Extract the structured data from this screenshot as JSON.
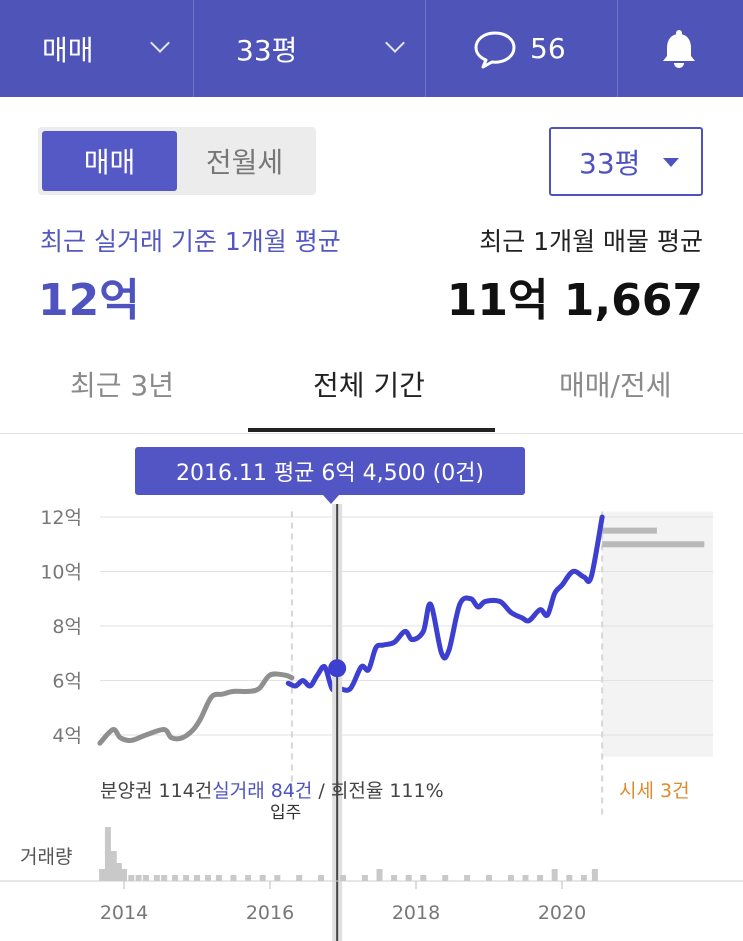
{
  "topbar": {
    "trade_type": "매매",
    "size": "33평",
    "comment_count": "56",
    "icons": {
      "comment": "speech-bubble-icon",
      "notification": "bell-icon",
      "dropdown": "chevron-down-icon"
    }
  },
  "toggle": {
    "active": "매매",
    "inactive": "전월세"
  },
  "size_select": {
    "value": "33평"
  },
  "stats": {
    "left_label": "최근 실거래 기준 1개월 평균",
    "left_value": "12억",
    "right_label": "최근 1개월 매물 평균",
    "right_value": "11억 1,667"
  },
  "tabs": [
    {
      "label": "최근 3년",
      "active": false
    },
    {
      "label": "전체 기간",
      "active": true
    },
    {
      "label": "매매/전세",
      "active": false
    }
  ],
  "tooltip": {
    "text": "2016.11 평균 6억 4,500 (0건)"
  },
  "footer": {
    "presale": "분양권 114건",
    "deals": "실거래 84건",
    "turnover": " / 회전율 111%",
    "market": "시세 3건",
    "movein": "입주",
    "volume_label": "거래량"
  },
  "colors": {
    "header": "#4f55b8",
    "accent": "#4e53c0",
    "line_before": "#8f8f8f",
    "line_after": "#3c3fd0",
    "market": "#e08a2c"
  },
  "chart_data": {
    "type": "line",
    "ylabel": "",
    "y_ticks": [
      "4억",
      "6억",
      "8억",
      "10억",
      "12억"
    ],
    "y_tick_values": [
      4,
      6,
      8,
      10,
      12
    ],
    "ylim": [
      3.2,
      12.2
    ],
    "x_ticks": [
      "2014",
      "2016",
      "2018",
      "2020"
    ],
    "x_tick_values": [
      2014,
      2016,
      2018,
      2020
    ],
    "xlim": [
      2013.6,
      2022.1
    ],
    "grid": true,
    "unit": "억",
    "presale_series": {
      "x": [
        2013.67,
        2013.85,
        2013.95,
        2014.1,
        2014.3,
        2014.55,
        2014.65,
        2014.8,
        2014.95,
        2015.05,
        2015.2,
        2015.35,
        2015.5,
        2015.7,
        2015.85,
        2016.0,
        2016.2,
        2016.3
      ],
      "y": [
        3.7,
        4.2,
        3.9,
        3.8,
        4.0,
        4.2,
        3.9,
        3.9,
        4.2,
        4.6,
        5.4,
        5.5,
        5.6,
        5.6,
        5.7,
        6.2,
        6.2,
        6.1
      ]
    },
    "deal_series": {
      "x": [
        2016.25,
        2016.35,
        2016.45,
        2016.55,
        2016.65,
        2016.75,
        2016.85,
        2016.95,
        2017.1,
        2017.25,
        2017.35,
        2017.45,
        2017.55,
        2017.7,
        2017.85,
        2017.95,
        2018.1,
        2018.2,
        2018.35,
        2018.45,
        2018.6,
        2018.75,
        2018.85,
        2018.95,
        2019.15,
        2019.3,
        2019.45,
        2019.55,
        2019.7,
        2019.8,
        2019.9,
        2020.0,
        2020.15,
        2020.3,
        2020.4,
        2020.55
      ],
      "y": [
        5.9,
        5.8,
        6.0,
        5.8,
        6.2,
        6.5,
        5.7,
        5.7,
        5.7,
        6.5,
        6.4,
        7.2,
        7.3,
        7.4,
        7.8,
        7.5,
        7.8,
        8.8,
        7.0,
        7.1,
        8.8,
        9.0,
        8.7,
        8.9,
        8.9,
        8.5,
        8.3,
        8.2,
        8.6,
        8.4,
        9.2,
        9.5,
        10.0,
        9.8,
        9.8,
        12.0
      ]
    },
    "selected_point": {
      "x": 2016.92,
      "y": 6.45
    },
    "movein_x": 2016.3,
    "market_start_x": 2020.55,
    "market_bars": [
      {
        "x_start": 2020.55,
        "x_end": 2021.3,
        "y": 11.5
      },
      {
        "x_start": 2020.55,
        "x_end": 2021.95,
        "y": 11.0
      }
    ],
    "volume": {
      "x": [
        2013.7,
        2013.78,
        2013.86,
        2013.93,
        2014.0,
        2014.1,
        2014.2,
        2014.3,
        2014.45,
        2014.55,
        2014.7,
        2014.85,
        2015.0,
        2015.15,
        2015.3,
        2015.5,
        2015.7,
        2015.9,
        2016.1,
        2016.4,
        2016.7,
        2017.0,
        2017.3,
        2017.5,
        2017.7,
        2017.9,
        2018.1,
        2018.4,
        2018.7,
        2019.0,
        2019.3,
        2019.5,
        2019.7,
        2019.9,
        2020.1,
        2020.3,
        2020.45
      ],
      "counts": [
        2,
        9,
        5,
        3,
        2,
        1,
        1,
        1,
        1,
        1,
        1,
        1,
        1,
        1,
        1,
        1,
        1,
        1,
        1,
        1,
        1,
        1,
        1,
        2,
        1,
        1,
        1,
        1,
        1,
        1,
        1,
        1,
        1,
        2,
        1,
        1,
        2
      ]
    }
  }
}
